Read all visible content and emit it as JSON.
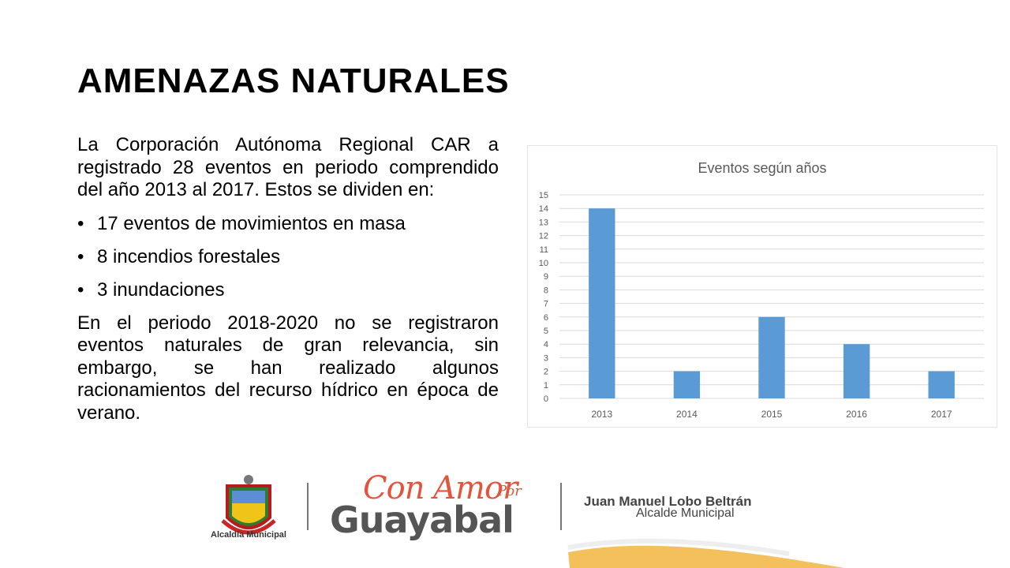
{
  "slide": {
    "title": "AMENAZAS NATURALES",
    "intro": "La Corporación Autónoma Regional CAR a registrado 28 eventos en periodo comprendido del año 2013 al 2017. Estos se dividen en:",
    "bullets": [
      "17 eventos de movimientos en masa",
      "8 incendios forestales",
      "3 inundaciones"
    ],
    "closing": "En el periodo 2018-2020 no se registraron eventos naturales de gran relevancia, sin embargo, se han realizado algunos racionamientos del recurso hídrico en época de verano.",
    "bullet_char": "•"
  },
  "chart_data": {
    "type": "bar",
    "title": "Eventos según años",
    "categories": [
      "2013",
      "2014",
      "2015",
      "2016",
      "2017"
    ],
    "values": [
      14,
      2,
      6,
      4,
      2
    ],
    "ylim": [
      0,
      15
    ],
    "yticks": [
      "0",
      "1",
      "2",
      "3",
      "4",
      "5",
      "6",
      "7",
      "8",
      "9",
      "10",
      "11",
      "12",
      "13",
      "14",
      "15"
    ],
    "grid": true,
    "bar_color": "#5b9bd5",
    "xlabel": "",
    "ylabel": ""
  },
  "footer": {
    "crest_label": "Alcaldía Municipal",
    "slogan_top": "Con Amor",
    "slogan_por": "Por",
    "slogan_main": "Guayabal",
    "mayor_name": "Juan Manuel Lobo Beltrán",
    "mayor_role": "Alcalde Municipal"
  },
  "colors": {
    "accent_orange": "#e2553d",
    "swoosh_yellow": "#f2b94a"
  }
}
